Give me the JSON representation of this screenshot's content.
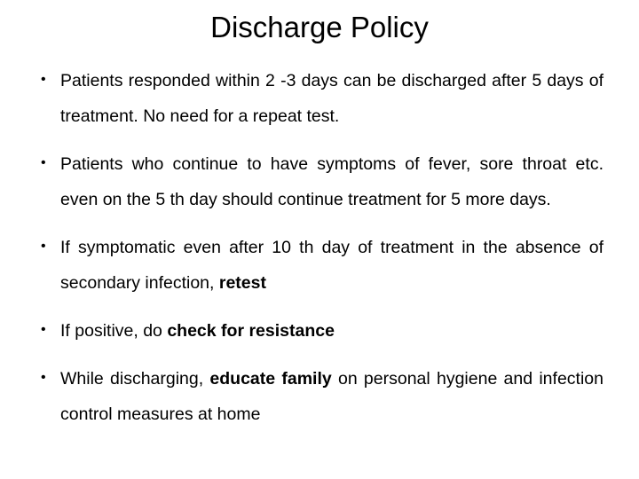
{
  "title": "Discharge Policy",
  "bullets": [
    {
      "html": "Patients responded within 2 -3 days can be discharged after 5 days of treatment. No need for a repeat test."
    },
    {
      "html": "Patients who continue to have symptoms of fever, sore throat etc. even on the 5 th day should continue treatment for 5 more days."
    },
    {
      "html": "If symptomatic even after 10 th day of treatment in the absence of secondary infection, <span class=\"bold\">retest</span>"
    },
    {
      "html": "If positive, do <span class=\"bold\">check for resistance</span>"
    },
    {
      "html": "While discharging, <span class=\"bold\">educate family</span> on personal hygiene and infection control measures at home"
    }
  ]
}
